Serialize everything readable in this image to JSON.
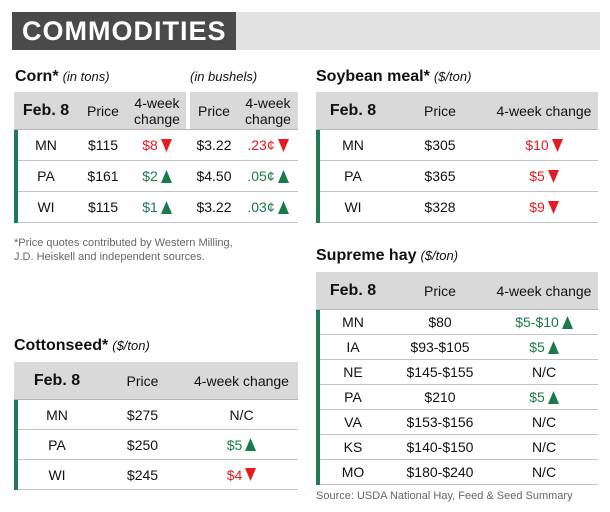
{
  "header": {
    "title": "COMMODITIES"
  },
  "corn": {
    "title": "Corn*",
    "unit": "(in tons)",
    "unit2": "(in bushels)",
    "columns": [
      "Feb. 8",
      "Price",
      "4-week change",
      "Price",
      "4-week change"
    ],
    "rows": [
      [
        "MN",
        "$115",
        {
          "text": "$8",
          "trend": "down"
        },
        "$3.22",
        {
          "text": ".23¢",
          "trend": "down"
        }
      ],
      [
        "PA",
        "$161",
        {
          "text": "$2",
          "trend": "up"
        },
        "$4.50",
        {
          "text": ".05¢",
          "trend": "up"
        }
      ],
      [
        "WI",
        "$115",
        {
          "text": "$1",
          "trend": "up"
        },
        "$3.22",
        {
          "text": ".03¢",
          "trend": "up"
        }
      ]
    ]
  },
  "footnote": "*Price quotes contributed by Western Milling, J.D. Heiskell and independent sources.",
  "soybean_meal": {
    "title": "Soybean meal*",
    "unit": "($/ton)",
    "columns": [
      "Feb. 8",
      "Price",
      "4-week change"
    ],
    "rows": [
      [
        "MN",
        "$305",
        {
          "text": "$10",
          "trend": "down"
        }
      ],
      [
        "PA",
        "$365",
        {
          "text": "$5",
          "trend": "down"
        }
      ],
      [
        "WI",
        "$328",
        {
          "text": "$9",
          "trend": "down"
        }
      ]
    ]
  },
  "supreme_hay": {
    "title": "Supreme hay",
    "unit": "($/ton)",
    "columns": [
      "Feb. 8",
      "Price",
      "4-week change"
    ],
    "rows": [
      [
        "MN",
        "$80",
        {
          "text": "$5-$10",
          "trend": "up"
        }
      ],
      [
        "IA",
        "$93-$105",
        {
          "text": "$5",
          "trend": "up"
        }
      ],
      [
        "NE",
        "$145-$155",
        "N/C"
      ],
      [
        "PA",
        "$210",
        {
          "text": "$5",
          "trend": "up"
        }
      ],
      [
        "VA",
        "$153-$156",
        "N/C"
      ],
      [
        "KS",
        "$140-$150",
        "N/C"
      ],
      [
        "MO",
        "$180-$240",
        "N/C"
      ]
    ]
  },
  "cottonseed": {
    "title": "Cottonseed*",
    "unit": "($/ton)",
    "columns": [
      "Feb. 8",
      "Price",
      "4-week change"
    ],
    "rows": [
      [
        "MN",
        "$275",
        "N/C"
      ],
      [
        "PA",
        "$250",
        {
          "text": "$5",
          "trend": "up"
        }
      ],
      [
        "WI",
        "$245",
        {
          "text": "$4",
          "trend": "down"
        }
      ]
    ]
  },
  "source": "Source: USDA National Hay, Feed & Seed Summary"
}
